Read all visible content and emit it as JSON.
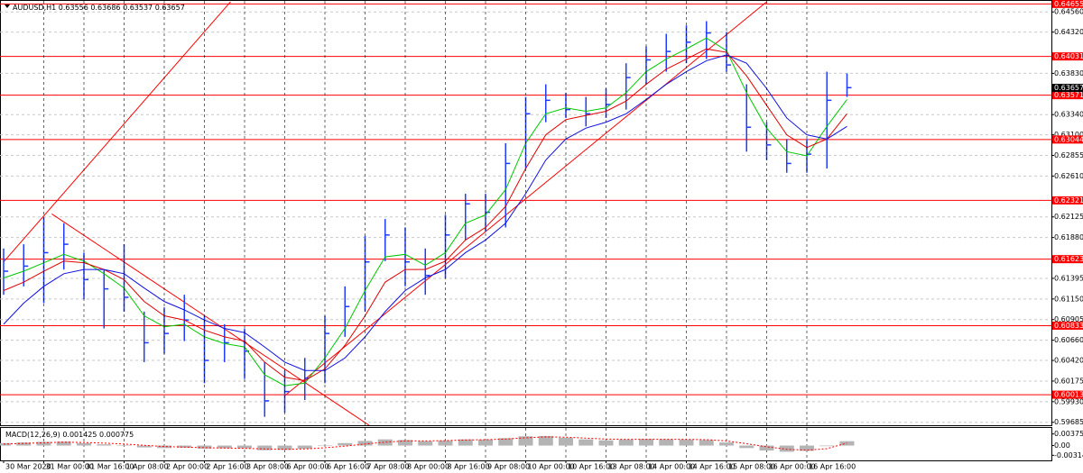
{
  "chart_data": {
    "type": "ohlc",
    "symbol": "AUDUSD,H1",
    "header_values": [
      0.63556,
      0.63686,
      0.63537,
      0.63657
    ],
    "categories": [
      "30 Mar 2020",
      null,
      "31 Mar 00:00",
      null,
      "31 Mar 16:00",
      null,
      "1 Apr 08:00",
      null,
      "2 Apr 00:00",
      null,
      "2 Apr 16:00",
      null,
      "3 Apr 08:00",
      null,
      "6 Apr 00:00",
      null,
      "6 Apr 16:00",
      null,
      "7 Apr 08:00",
      null,
      "8 Apr 00:00",
      null,
      "8 Apr 16:00",
      null,
      "9 Apr 08:00",
      null,
      "10 Apr 00:00",
      null,
      "10 Apr 16:00",
      null,
      "13 Apr 08:00",
      null,
      "14 Apr 00:00",
      null,
      "14 Apr 16:00",
      null,
      "15 Apr 08:00",
      null,
      "16 Apr 00:00",
      null,
      "16 Apr 16:00",
      null,
      null
    ],
    "high": [
      0.6175,
      0.618,
      0.6212,
      0.6205,
      0.617,
      0.615,
      0.618,
      0.61,
      0.6105,
      0.612,
      0.6095,
      0.6085,
      0.608,
      0.604,
      0.603,
      0.6045,
      0.6095,
      0.613,
      0.619,
      0.621,
      0.62,
      0.6175,
      0.6215,
      0.624,
      0.624,
      0.63,
      0.6355,
      0.637,
      0.636,
      0.6355,
      0.6365,
      0.6395,
      0.6415,
      0.643,
      0.644,
      0.6445,
      0.6432,
      0.637,
      0.6325,
      0.6305,
      0.6305,
      0.6385,
      0.6383
    ],
    "low": [
      0.612,
      0.613,
      0.611,
      0.615,
      0.6115,
      0.608,
      0.61,
      0.604,
      0.605,
      0.6065,
      0.6015,
      0.604,
      0.602,
      0.5975,
      0.598,
      0.5995,
      0.6015,
      0.607,
      0.61,
      0.616,
      0.613,
      0.612,
      0.614,
      0.6185,
      0.6195,
      0.62,
      0.627,
      0.6325,
      0.633,
      0.632,
      0.633,
      0.634,
      0.637,
      0.6385,
      0.6395,
      0.64,
      0.6385,
      0.629,
      0.628,
      0.6265,
      0.6265,
      0.627,
      0.6355
    ],
    "close": [
      0.6148,
      0.6154,
      0.617,
      0.618,
      0.6138,
      0.6127,
      0.6117,
      0.6063,
      0.6074,
      0.609,
      0.6042,
      0.6063,
      0.6053,
      0.5994,
      0.6005,
      0.6021,
      0.6074,
      0.6106,
      0.6159,
      0.6191,
      0.6159,
      0.6143,
      0.6191,
      0.6228,
      0.6218,
      0.6276,
      0.6335,
      0.6351,
      0.634,
      0.6335,
      0.6346,
      0.6378,
      0.6399,
      0.6409,
      0.642,
      0.6431,
      0.6393,
      0.6319,
      0.6298,
      0.6276,
      0.6287,
      0.6351,
      0.6366
    ],
    "bar_color": "#1f3cff",
    "indicators": [
      {
        "color": "#00c800",
        "values": [
          0.614,
          0.6148,
          0.6158,
          0.6168,
          0.616,
          0.6145,
          0.6128,
          0.6095,
          0.6082,
          0.6085,
          0.607,
          0.6062,
          0.6058,
          0.6025,
          0.6012,
          0.6015,
          0.6045,
          0.608,
          0.6125,
          0.6165,
          0.6168,
          0.6155,
          0.617,
          0.6205,
          0.6215,
          0.6245,
          0.63,
          0.6335,
          0.6342,
          0.6338,
          0.6342,
          0.636,
          0.6385,
          0.64,
          0.6412,
          0.6425,
          0.641,
          0.636,
          0.6318,
          0.629,
          0.6285,
          0.632,
          0.6352
        ]
      },
      {
        "color": "#e00000",
        "values": [
          0.6125,
          0.6135,
          0.6148,
          0.616,
          0.6158,
          0.615,
          0.6138,
          0.6112,
          0.6095,
          0.609,
          0.6078,
          0.607,
          0.6065,
          0.604,
          0.6022,
          0.6018,
          0.6032,
          0.606,
          0.6095,
          0.6135,
          0.615,
          0.615,
          0.616,
          0.6185,
          0.62,
          0.6225,
          0.627,
          0.631,
          0.6328,
          0.6333,
          0.6338,
          0.635,
          0.637,
          0.6388,
          0.64,
          0.6412,
          0.6408,
          0.638,
          0.6345,
          0.631,
          0.6295,
          0.6305,
          0.6335
        ]
      },
      {
        "color": "#1010e0",
        "values": [
          0.6085,
          0.611,
          0.613,
          0.6145,
          0.615,
          0.615,
          0.6145,
          0.6128,
          0.6112,
          0.6102,
          0.609,
          0.608,
          0.6075,
          0.6058,
          0.604,
          0.603,
          0.603,
          0.6045,
          0.607,
          0.61,
          0.6125,
          0.614,
          0.615,
          0.617,
          0.6185,
          0.6205,
          0.624,
          0.628,
          0.6305,
          0.6318,
          0.6325,
          0.6335,
          0.6352,
          0.637,
          0.6385,
          0.6398,
          0.6405,
          0.6395,
          0.6365,
          0.633,
          0.631,
          0.6305,
          0.632
        ]
      }
    ],
    "ylim": [
      0.5965,
      0.6468
    ],
    "yticks": [
      {
        "value": 0.6456,
        "label": "0.64560"
      },
      {
        "value": 0.6432,
        "label": "0.64320"
      },
      {
        "value": 0.6383,
        "label": "0.63830"
      },
      {
        "value": 0.6334,
        "label": "0.63340"
      },
      {
        "value": 0.631,
        "label": "0.63100"
      },
      {
        "value": 0.62855,
        "label": "0.62855"
      },
      {
        "value": 0.6261,
        "label": "0.62610"
      },
      {
        "value": 0.62125,
        "label": "0.62125"
      },
      {
        "value": 0.6188,
        "label": "0.61880"
      },
      {
        "value": 0.61395,
        "label": "0.61395"
      },
      {
        "value": 0.6115,
        "label": "0.61150"
      },
      {
        "value": 0.60905,
        "label": "0.60905"
      },
      {
        "value": 0.6066,
        "label": "0.60660"
      },
      {
        "value": 0.6042,
        "label": "0.60420"
      },
      {
        "value": 0.60175,
        "label": "0.60175"
      },
      {
        "value": 0.5993,
        "label": "0.59930"
      },
      {
        "value": 0.59685,
        "label": "0.59685"
      }
    ],
    "grid": true,
    "levels": [
      0.64655,
      0.64031,
      0.63571,
      0.63044,
      0.62321,
      0.61623,
      0.60833,
      0.60013
    ],
    "level_color": "#ff0000",
    "last_price": 0.63657,
    "trendlines": [
      {
        "x": [
          0,
          11.3
        ],
        "y": [
          0.6159,
          0.6468
        ]
      },
      {
        "x": [
          2.4,
          18.2
        ],
        "y": [
          0.6216,
          0.5965
        ]
      },
      {
        "x": [
          14,
          38
        ],
        "y": [
          0.6,
          0.6468
        ]
      }
    ],
    "macd": {
      "label": "MACD(12,26,9)",
      "values": [
        0.001425,
        0.000775
      ],
      "ylim": [
        -0.0045,
        0.0054
      ],
      "yticks": [
        0.003754,
        {
          "value": 0,
          "label": "0.00"
        },
        -0.003141
      ],
      "histogram_color": "#b4b4b4",
      "signal_color": "#ff0000",
      "histogram": [
        0.0008,
        0.001,
        0.0012,
        0.0013,
        0.0008,
        0.0004,
        0.0001,
        -0.0006,
        -0.0008,
        -0.0007,
        -0.001,
        -0.0009,
        -0.0009,
        -0.0015,
        -0.0014,
        -0.001,
        0.0,
        0.0008,
        0.0015,
        0.002,
        0.0018,
        0.0014,
        0.0016,
        0.002,
        0.0019,
        0.0024,
        0.003,
        0.0031,
        0.0025,
        0.002,
        0.0017,
        0.0019,
        0.0021,
        0.002,
        0.0019,
        0.0018,
        0.001,
        -0.0008,
        -0.0016,
        -0.002,
        -0.0017,
        -0.0002,
        0.0014
      ],
      "signal": [
        0.0005,
        0.0007,
        0.0009,
        0.0011,
        0.001,
        0.0008,
        0.0005,
        0.0001,
        -0.0003,
        -0.0005,
        -0.0007,
        -0.0008,
        -0.0009,
        -0.0011,
        -0.0012,
        -0.0011,
        -0.0007,
        -0.0002,
        0.0005,
        0.0011,
        0.0015,
        0.0015,
        0.0016,
        0.0018,
        0.0019,
        0.0021,
        0.0025,
        0.0028,
        0.0027,
        0.0024,
        0.0021,
        0.002,
        0.002,
        0.002,
        0.002,
        0.0019,
        0.0015,
        0.0006,
        -0.0004,
        -0.0012,
        -0.0015,
        -0.001,
        0.0008
      ]
    }
  }
}
